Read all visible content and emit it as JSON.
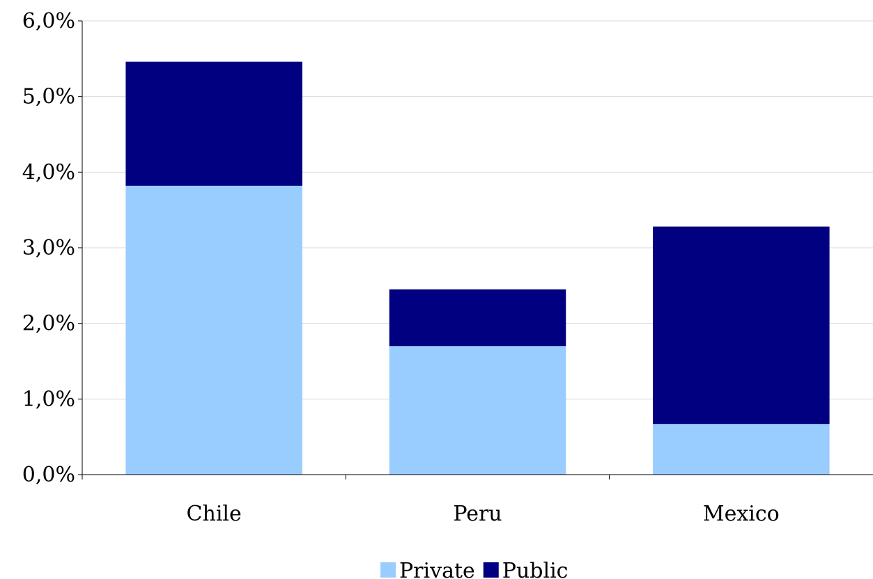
{
  "chart_data": {
    "type": "bar",
    "stacked": true,
    "categories": [
      "Chile",
      "Peru",
      "Mexico"
    ],
    "series": [
      {
        "name": "Private",
        "values": [
          3.82,
          1.7,
          0.67
        ],
        "color": "#99ccff"
      },
      {
        "name": "Public",
        "values": [
          1.64,
          0.75,
          2.61
        ],
        "color": "#000080"
      }
    ],
    "y_ticks": [
      "0,0%",
      "1,0%",
      "2,0%",
      "3,0%",
      "4,0%",
      "5,0%",
      "6,0%"
    ],
    "ylim": [
      0,
      6
    ],
    "title": "",
    "xlabel": "",
    "ylabel": "",
    "grid": true,
    "legend_position": "bottom"
  }
}
